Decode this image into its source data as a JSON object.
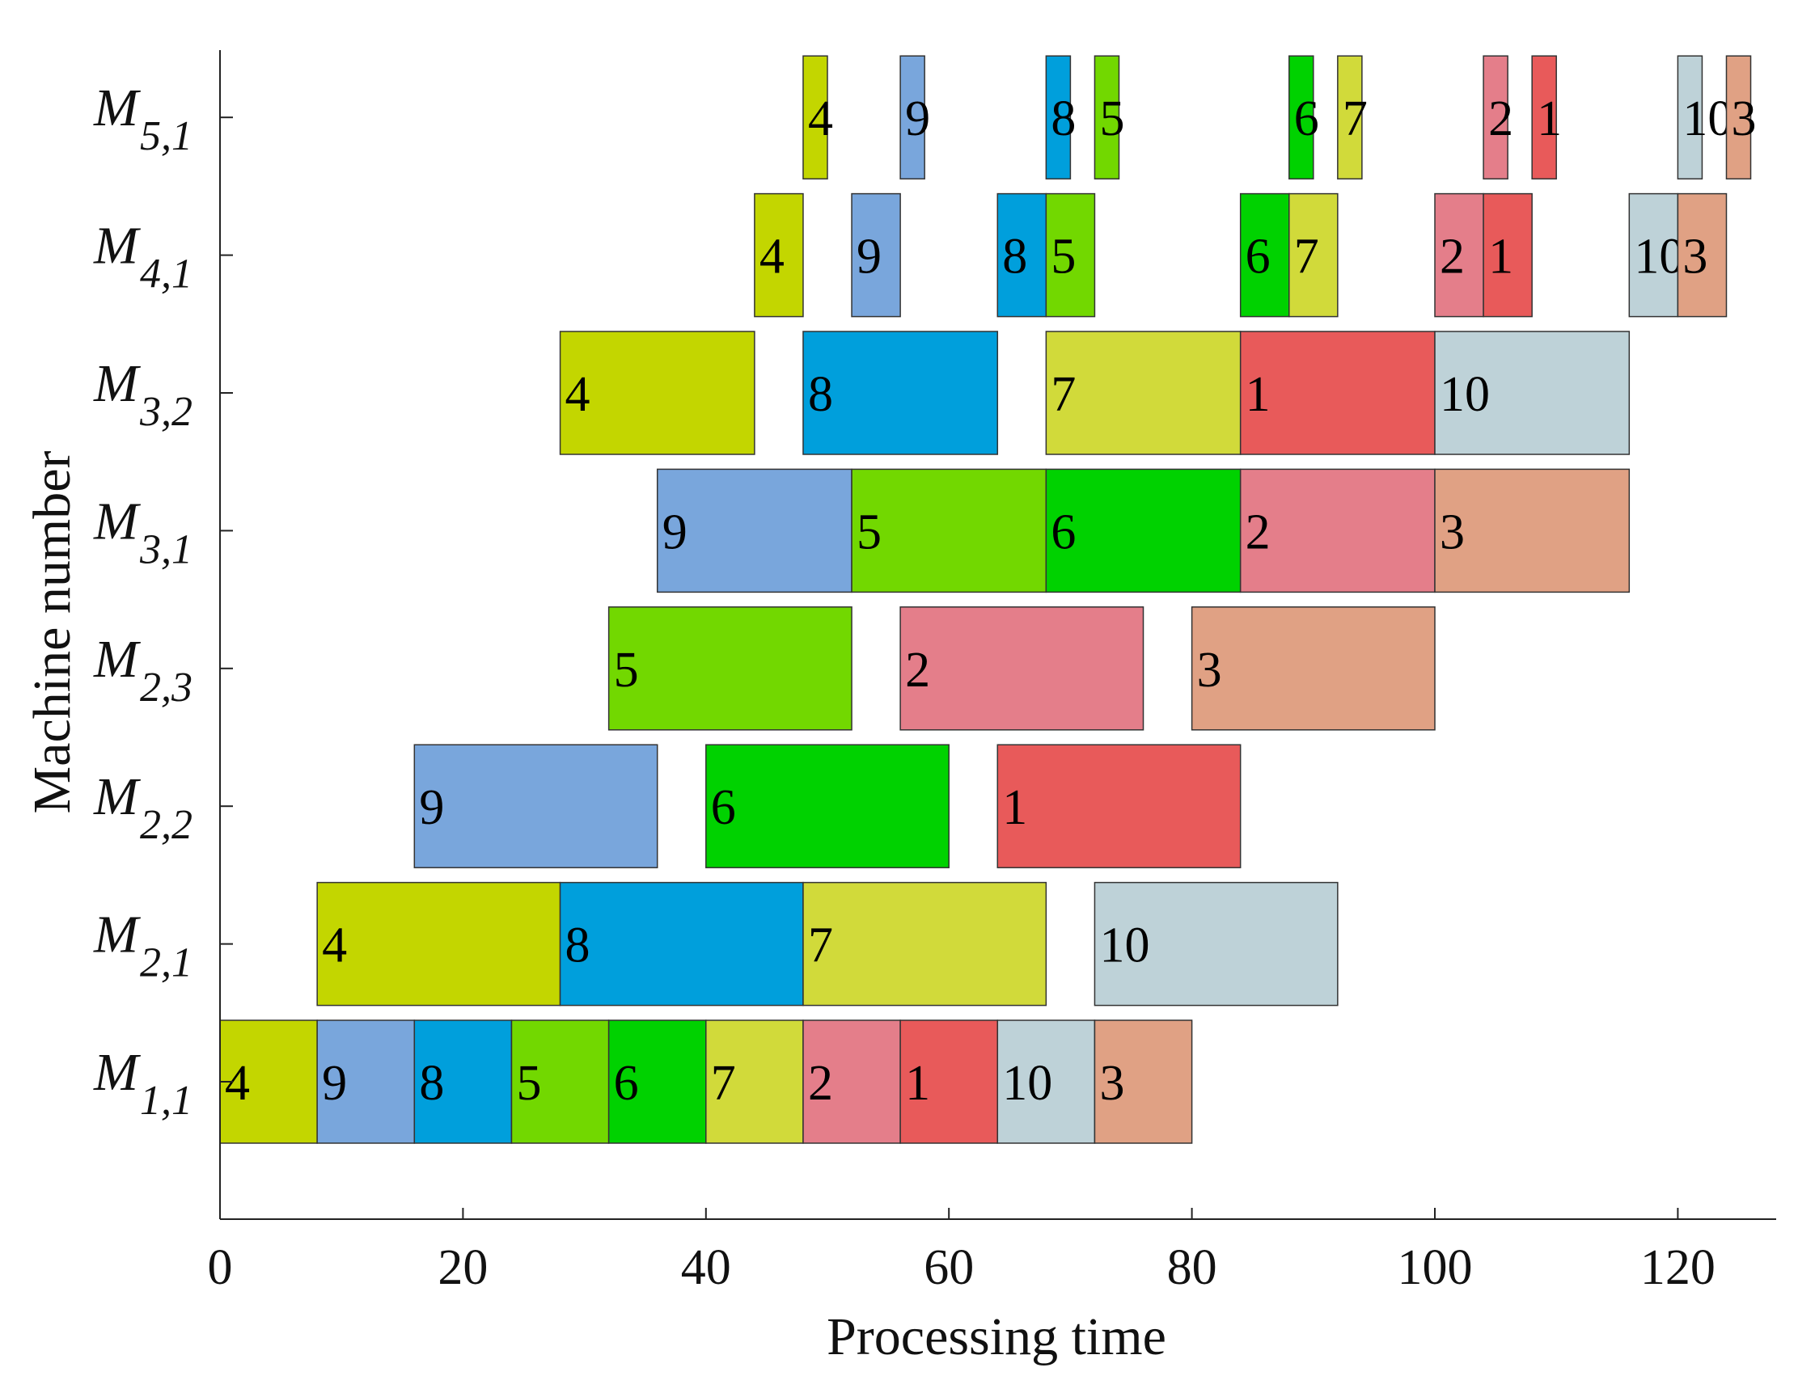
{
  "chart_data": {
    "type": "gantt",
    "xlabel": "Processing time",
    "ylabel": "Machine number",
    "xlim": [
      0,
      128
    ],
    "xticks": [
      0,
      20,
      40,
      60,
      80,
      100,
      120
    ],
    "job_colors": {
      "1": "#e85a5a",
      "2": "#e47e8a",
      "3": "#e0a184",
      "4": "#c3d600",
      "5": "#72d800",
      "6": "#00d200",
      "7": "#d1da3a",
      "8": "#009fdc",
      "9": "#79a6dc",
      "10": "#bed2d8"
    },
    "machines": [
      {
        "name": "M",
        "sub": "1,1",
        "tasks": [
          {
            "job": "4",
            "start": 0,
            "end": 8
          },
          {
            "job": "9",
            "start": 8,
            "end": 16
          },
          {
            "job": "8",
            "start": 16,
            "end": 24
          },
          {
            "job": "5",
            "start": 24,
            "end": 32
          },
          {
            "job": "6",
            "start": 32,
            "end": 40
          },
          {
            "job": "7",
            "start": 40,
            "end": 48
          },
          {
            "job": "2",
            "start": 48,
            "end": 56
          },
          {
            "job": "1",
            "start": 56,
            "end": 64
          },
          {
            "job": "10",
            "start": 64,
            "end": 72
          },
          {
            "job": "3",
            "start": 72,
            "end": 80
          }
        ]
      },
      {
        "name": "M",
        "sub": "2,1",
        "tasks": [
          {
            "job": "4",
            "start": 8,
            "end": 28
          },
          {
            "job": "8",
            "start": 28,
            "end": 48
          },
          {
            "job": "7",
            "start": 48,
            "end": 68
          },
          {
            "job": "10",
            "start": 72,
            "end": 92
          }
        ]
      },
      {
        "name": "M",
        "sub": "2,2",
        "tasks": [
          {
            "job": "9",
            "start": 16,
            "end": 36
          },
          {
            "job": "6",
            "start": 40,
            "end": 60
          },
          {
            "job": "1",
            "start": 64,
            "end": 84
          }
        ]
      },
      {
        "name": "M",
        "sub": "2,3",
        "tasks": [
          {
            "job": "5",
            "start": 32,
            "end": 52
          },
          {
            "job": "2",
            "start": 56,
            "end": 76
          },
          {
            "job": "3",
            "start": 80,
            "end": 100
          }
        ]
      },
      {
        "name": "M",
        "sub": "3,1",
        "tasks": [
          {
            "job": "9",
            "start": 36,
            "end": 52
          },
          {
            "job": "5",
            "start": 52,
            "end": 68
          },
          {
            "job": "6",
            "start": 68,
            "end": 84
          },
          {
            "job": "2",
            "start": 84,
            "end": 100
          },
          {
            "job": "3",
            "start": 100,
            "end": 116
          }
        ]
      },
      {
        "name": "M",
        "sub": "3,2",
        "tasks": [
          {
            "job": "4",
            "start": 28,
            "end": 44
          },
          {
            "job": "8",
            "start": 48,
            "end": 64
          },
          {
            "job": "7",
            "start": 68,
            "end": 84
          },
          {
            "job": "1",
            "start": 84,
            "end": 100
          },
          {
            "job": "10",
            "start": 100,
            "end": 116
          }
        ]
      },
      {
        "name": "M",
        "sub": "4,1",
        "tasks": [
          {
            "job": "4",
            "start": 44,
            "end": 48
          },
          {
            "job": "9",
            "start": 52,
            "end": 56
          },
          {
            "job": "8",
            "start": 64,
            "end": 68
          },
          {
            "job": "5",
            "start": 68,
            "end": 72
          },
          {
            "job": "6",
            "start": 84,
            "end": 88
          },
          {
            "job": "7",
            "start": 88,
            "end": 92
          },
          {
            "job": "2",
            "start": 100,
            "end": 104
          },
          {
            "job": "1",
            "start": 104,
            "end": 108
          },
          {
            "job": "10",
            "start": 116,
            "end": 120
          },
          {
            "job": "3",
            "start": 120,
            "end": 124
          }
        ]
      },
      {
        "name": "M",
        "sub": "5,1",
        "tasks": [
          {
            "job": "4",
            "start": 48,
            "end": 50
          },
          {
            "job": "9",
            "start": 56,
            "end": 58
          },
          {
            "job": "8",
            "start": 68,
            "end": 70
          },
          {
            "job": "5",
            "start": 72,
            "end": 74
          },
          {
            "job": "6",
            "start": 88,
            "end": 90
          },
          {
            "job": "7",
            "start": 92,
            "end": 94
          },
          {
            "job": "2",
            "start": 104,
            "end": 106
          },
          {
            "job": "1",
            "start": 108,
            "end": 110
          },
          {
            "job": "10",
            "start": 120,
            "end": 122
          },
          {
            "job": "3",
            "start": 124,
            "end": 126
          }
        ]
      }
    ]
  }
}
